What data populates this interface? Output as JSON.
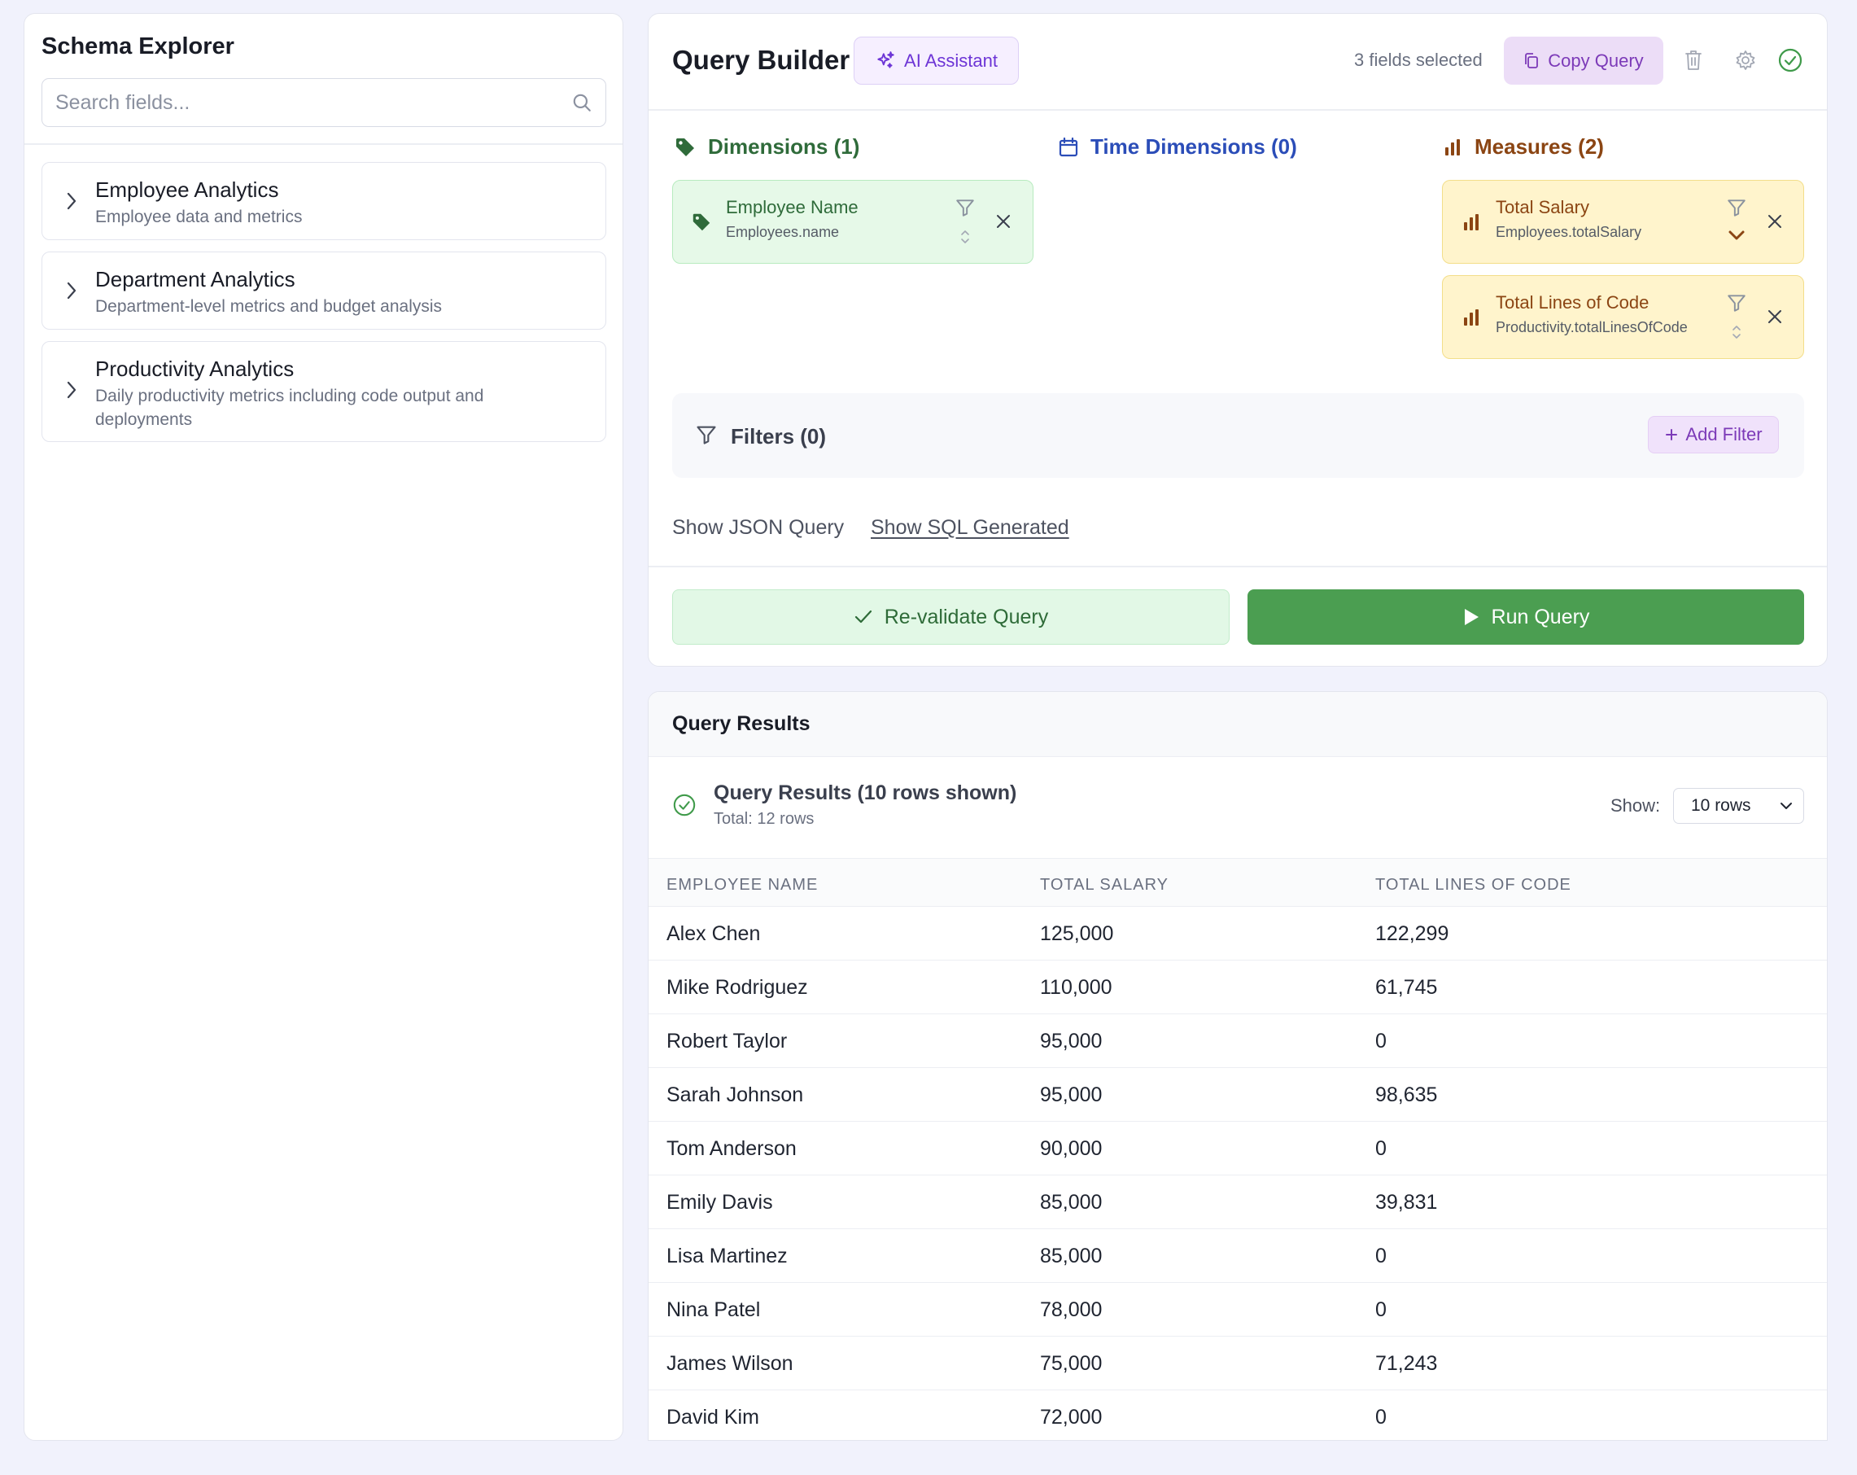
{
  "sidebar": {
    "title": "Schema Explorer",
    "search_placeholder": "Search fields...",
    "cubes": [
      {
        "title": "Employee Analytics",
        "description": "Employee data and metrics"
      },
      {
        "title": "Department Analytics",
        "description": "Department-level metrics and budget analysis"
      },
      {
        "title": "Productivity Analytics",
        "description": "Daily productivity metrics including code output and deployments"
      }
    ]
  },
  "builder": {
    "title": "Query Builder",
    "ai_button": "AI Assistant",
    "fields_selected": "3 fields selected",
    "copy_button": "Copy Query",
    "dimensions": {
      "heading": "Dimensions (1)",
      "items": [
        {
          "title": "Employee Name",
          "field": "Employees.name"
        }
      ]
    },
    "time_dimensions": {
      "heading": "Time Dimensions (0)"
    },
    "measures": {
      "heading": "Measures (2)",
      "items": [
        {
          "title": "Total Salary",
          "field": "Employees.totalSalary",
          "sort": "descending"
        },
        {
          "title": "Total Lines of Code",
          "field": "Productivity.totalLinesOfCode",
          "sort": "none"
        }
      ]
    },
    "filters": {
      "heading": "Filters (0)",
      "add_button": "Add Filter"
    },
    "links": {
      "json": "Show JSON Query",
      "sql": "Show SQL Generated"
    },
    "revalidate_button": "Re-validate Query",
    "run_button": "Run Query"
  },
  "results": {
    "panel_title": "Query Results",
    "summary_title": "Query Results (10 rows shown)",
    "summary_total": "Total: 12 rows",
    "show_label": "Show:",
    "show_value": "10 rows",
    "columns": [
      "EMPLOYEE NAME",
      "TOTAL SALARY",
      "TOTAL LINES OF CODE"
    ],
    "rows": [
      [
        "Alex Chen",
        "125,000",
        "122,299"
      ],
      [
        "Mike Rodriguez",
        "110,000",
        "61,745"
      ],
      [
        "Robert Taylor",
        "95,000",
        "0"
      ],
      [
        "Sarah Johnson",
        "95,000",
        "98,635"
      ],
      [
        "Tom Anderson",
        "90,000",
        "0"
      ],
      [
        "Emily Davis",
        "85,000",
        "39,831"
      ],
      [
        "Lisa Martinez",
        "85,000",
        "0"
      ],
      [
        "Nina Patel",
        "78,000",
        "0"
      ],
      [
        "James Wilson",
        "75,000",
        "71,243"
      ],
      [
        "David Kim",
        "72,000",
        "0"
      ]
    ]
  },
  "colors": {
    "accent_purple": "#6d35d6",
    "dimension_green": "#2f6b3a",
    "time_blue": "#2b4db8",
    "measure_brown": "#8b4513",
    "run_green": "#4b9e51"
  }
}
